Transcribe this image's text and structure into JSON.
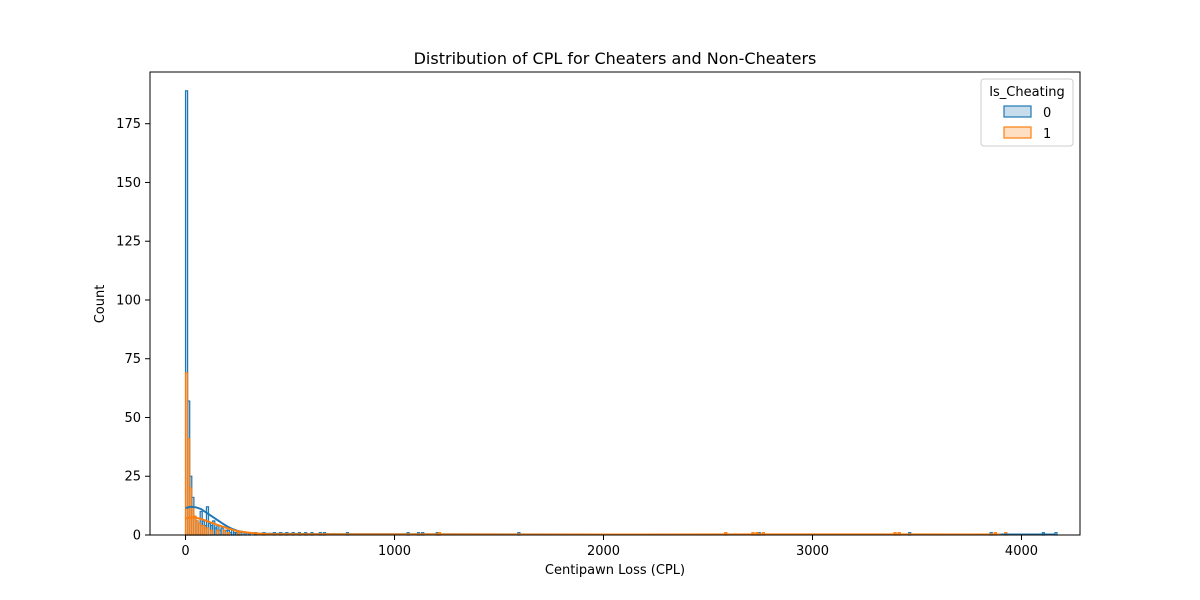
{
  "chart_data": {
    "type": "histogram",
    "title": "Distribution of CPL for Cheaters and Non-Cheaters",
    "xlabel": "Centipawn Loss (CPL)",
    "ylabel": "Count",
    "xlim": [
      -170,
      4280
    ],
    "ylim": [
      0,
      197
    ],
    "xticks": [
      0,
      1000,
      2000,
      3000,
      4000
    ],
    "yticks": [
      0,
      25,
      50,
      75,
      100,
      125,
      150,
      175
    ],
    "grid": false,
    "legend": {
      "title": "Is_Cheating",
      "placement": "top-right",
      "entries": [
        "0",
        "1"
      ]
    },
    "series": [
      {
        "name": "0",
        "color": "#1f77b4",
        "bars": [
          [
            0,
            189
          ],
          [
            10,
            57
          ],
          [
            20,
            25
          ],
          [
            30,
            16
          ],
          [
            40,
            8
          ],
          [
            50,
            6
          ],
          [
            60,
            5
          ],
          [
            70,
            10
          ],
          [
            80,
            6
          ],
          [
            90,
            4
          ],
          [
            100,
            12
          ],
          [
            110,
            5
          ],
          [
            120,
            4
          ],
          [
            130,
            6
          ],
          [
            140,
            3
          ],
          [
            150,
            4
          ],
          [
            160,
            2
          ],
          [
            170,
            3
          ],
          [
            180,
            2
          ],
          [
            190,
            2
          ],
          [
            200,
            2
          ],
          [
            210,
            1
          ],
          [
            220,
            2
          ],
          [
            230,
            1
          ],
          [
            240,
            1
          ],
          [
            250,
            1
          ],
          [
            260,
            1
          ],
          [
            280,
            1
          ],
          [
            300,
            1
          ],
          [
            330,
            1
          ],
          [
            370,
            1
          ],
          [
            420,
            1
          ],
          [
            450,
            1
          ],
          [
            480,
            1
          ],
          [
            510,
            1
          ],
          [
            540,
            1
          ],
          [
            570,
            1
          ],
          [
            600,
            1
          ],
          [
            640,
            1
          ],
          [
            660,
            1
          ],
          [
            770,
            1
          ],
          [
            1060,
            1
          ],
          [
            1110,
            1
          ],
          [
            1130,
            1
          ],
          [
            1200,
            1
          ],
          [
            1590,
            1
          ],
          [
            2740,
            1
          ],
          [
            3460,
            1
          ],
          [
            3850,
            1
          ],
          [
            4100,
            1
          ],
          [
            4160,
            1
          ]
        ],
        "kde": [
          [
            0,
            11.5
          ],
          [
            25,
            12.0
          ],
          [
            50,
            11.8
          ],
          [
            75,
            11.0
          ],
          [
            100,
            9.5
          ],
          [
            125,
            8.0
          ],
          [
            150,
            6.5
          ],
          [
            175,
            5.0
          ],
          [
            200,
            3.6
          ],
          [
            225,
            2.5
          ],
          [
            250,
            1.7
          ],
          [
            300,
            0.9
          ],
          [
            350,
            0.6
          ],
          [
            400,
            0.5
          ],
          [
            500,
            0.45
          ],
          [
            600,
            0.4
          ],
          [
            800,
            0.35
          ],
          [
            1000,
            0.3
          ],
          [
            1500,
            0.25
          ],
          [
            2000,
            0.2
          ],
          [
            2500,
            0.2
          ],
          [
            3000,
            0.2
          ],
          [
            3500,
            0.2
          ],
          [
            4000,
            0.2
          ],
          [
            4160,
            0.2
          ]
        ]
      },
      {
        "name": "1",
        "color": "#ff7f0e",
        "bars": [
          [
            0,
            69
          ],
          [
            10,
            41
          ],
          [
            20,
            20
          ],
          [
            30,
            12
          ],
          [
            40,
            8
          ],
          [
            50,
            6
          ],
          [
            60,
            5
          ],
          [
            70,
            4
          ],
          [
            80,
            4
          ],
          [
            90,
            3
          ],
          [
            100,
            3
          ],
          [
            120,
            2
          ],
          [
            150,
            2
          ],
          [
            180,
            2
          ],
          [
            200,
            1
          ],
          [
            250,
            1
          ],
          [
            1210,
            1
          ],
          [
            2580,
            1
          ],
          [
            2710,
            1
          ],
          [
            2730,
            1
          ],
          [
            2760,
            1
          ],
          [
            3390,
            1
          ],
          [
            3410,
            1
          ],
          [
            3870,
            1
          ],
          [
            3920,
            1
          ]
        ],
        "kde": [
          [
            0,
            7.0
          ],
          [
            25,
            7.5
          ],
          [
            50,
            7.3
          ],
          [
            75,
            6.8
          ],
          [
            100,
            6.0
          ],
          [
            125,
            5.2
          ],
          [
            150,
            4.4
          ],
          [
            175,
            3.6
          ],
          [
            200,
            2.9
          ],
          [
            225,
            2.2
          ],
          [
            250,
            1.6
          ],
          [
            300,
            1.0
          ],
          [
            350,
            0.6
          ],
          [
            400,
            0.4
          ],
          [
            500,
            0.3
          ],
          [
            800,
            0.25
          ],
          [
            1200,
            0.25
          ],
          [
            2000,
            0.2
          ],
          [
            2700,
            0.25
          ],
          [
            3400,
            0.25
          ],
          [
            3900,
            0.2
          ]
        ]
      }
    ]
  }
}
